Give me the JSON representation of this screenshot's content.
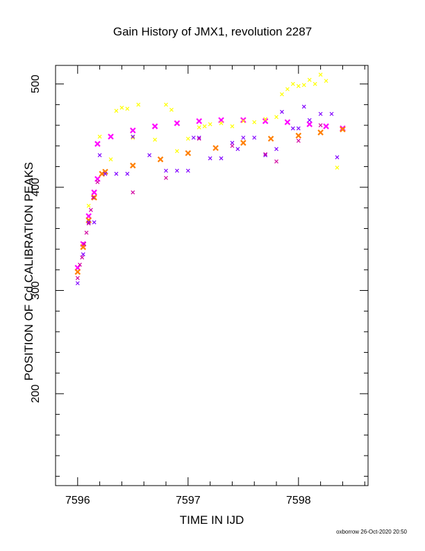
{
  "chart_data": {
    "type": "scatter",
    "title": "Gain History of JMX1, revolution 2287",
    "xlabel": "TIME IN IJD",
    "ylabel": "POSITION OF Cd CALIBRATION PEAKS",
    "xlim": [
      7595.8,
      7598.63
    ],
    "ylim": [
      111,
      518
    ],
    "xticks": [
      7596,
      7597,
      7598
    ],
    "xtick_labels": [
      "7596",
      "7597",
      "7598"
    ],
    "yticks": [
      200,
      300,
      400,
      500
    ],
    "ytick_labels": [
      "200",
      "300",
      "400",
      "500"
    ],
    "grid": false,
    "colors": {
      "magenta": "#ff00ff",
      "orange": "#ff7f00",
      "yellow": "#ffff00",
      "purple": "#8000ff",
      "red_violet": "#d000a0"
    },
    "series": [
      {
        "color": "magenta",
        "x": [
          7596.0,
          7596.05,
          7596.1,
          7596.15,
          7596.18,
          7596.18,
          7596.3,
          7596.5,
          7596.7,
          7596.9,
          7597.1,
          7597.3,
          7597.5,
          7597.7,
          7597.9,
          7598.1,
          7598.25,
          7598.4
        ],
        "y": [
          322,
          345,
          372,
          395,
          408,
          442,
          449,
          455,
          459,
          462,
          464,
          465,
          465,
          464,
          463,
          461,
          459,
          457
        ]
      },
      {
        "color": "orange",
        "x": [
          7596.0,
          7596.05,
          7596.1,
          7596.15,
          7596.22,
          7596.25,
          7596.5,
          7596.75,
          7597.0,
          7597.25,
          7597.5,
          7597.75,
          7598.0,
          7598.2,
          7598.4
        ],
        "y": [
          318,
          342,
          368,
          390,
          413,
          415,
          421,
          427,
          433,
          438,
          443,
          447,
          450,
          453,
          456
        ]
      },
      {
        "color": "yellow",
        "x": [
          7596.1,
          7596.2,
          7596.3,
          7596.35,
          7596.4,
          7596.45,
          7596.5,
          7596.55,
          7596.7,
          7596.8,
          7596.85,
          7596.9,
          7597.0,
          7597.1,
          7597.15,
          7597.2,
          7597.3,
          7597.4,
          7597.5,
          7597.6,
          7597.7,
          7597.8,
          7597.85,
          7597.9,
          7597.95,
          7598.0,
          7598.05,
          7598.1,
          7598.15,
          7598.2,
          7598.25,
          7598.35
        ],
        "y": [
          382,
          449,
          427,
          474,
          477,
          476,
          448,
          480,
          446,
          480,
          475,
          435,
          447,
          458,
          459,
          461,
          462,
          459,
          464,
          463,
          466,
          468,
          490,
          495,
          500,
          498,
          499,
          504,
          500,
          509,
          503,
          419
        ]
      },
      {
        "color": "purple",
        "x": [
          7596.0,
          7596.05,
          7596.1,
          7596.15,
          7596.2,
          7596.25,
          7596.35,
          7596.45,
          7596.5,
          7596.65,
          7596.8,
          7596.9,
          7597.0,
          7597.05,
          7597.1,
          7597.2,
          7597.3,
          7597.4,
          7597.45,
          7597.5,
          7597.6,
          7597.7,
          7597.8,
          7597.85,
          7597.95,
          7598.0,
          7598.05,
          7598.1,
          7598.2,
          7598.3,
          7598.35
        ],
        "y": [
          307,
          335,
          366,
          366,
          431,
          413,
          413,
          413,
          449,
          431,
          416,
          416,
          416,
          448,
          448,
          428,
          428,
          443,
          437,
          448,
          448,
          431,
          437,
          473,
          457,
          457,
          478,
          465,
          471,
          471,
          429
        ]
      },
      {
        "color": "red_violet",
        "x": [
          7596.0,
          7596.02,
          7596.04,
          7596.06,
          7596.08,
          7596.1,
          7596.12,
          7596.14,
          7596.18,
          7596.5,
          7596.8,
          7597.1,
          7597.4,
          7597.7,
          7597.8,
          7598.0,
          7598.2
        ],
        "y": [
          312,
          325,
          332,
          345,
          356,
          365,
          378,
          390,
          405,
          395,
          409,
          447,
          440,
          432,
          425,
          445,
          460
        ]
      }
    ]
  },
  "footer": {
    "stamp": "oxborrow 26-Oct-2020 20:50"
  }
}
